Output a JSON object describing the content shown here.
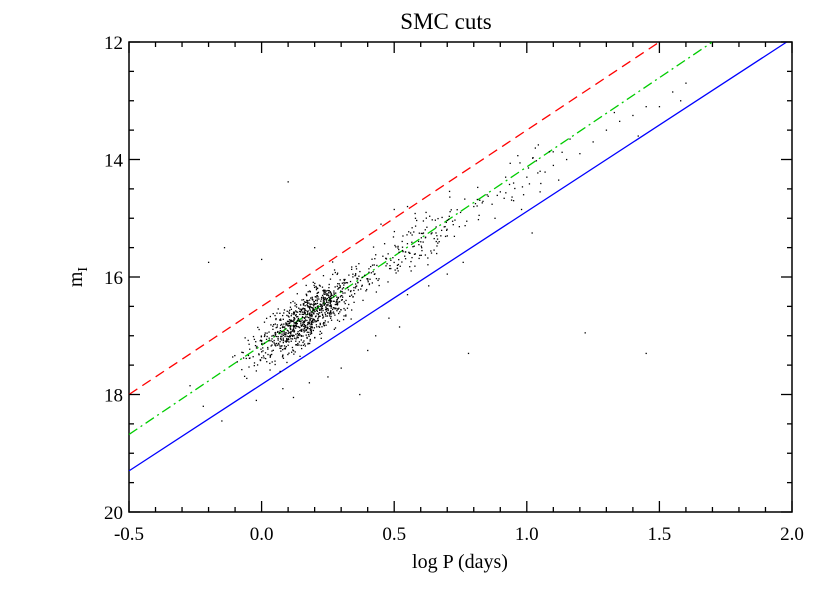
{
  "chart_data": {
    "type": "scatter",
    "title": "SMC cuts",
    "xlabel": "log P (days)",
    "ylabel_main": "m",
    "ylabel_sub": "I",
    "xlim": [
      -0.5,
      2.0
    ],
    "ylim": [
      20,
      12
    ],
    "y_inverted": true,
    "xticks": [
      -0.5,
      0.0,
      0.5,
      1.0,
      1.5,
      2.0
    ],
    "xtick_labels": [
      "-0.5",
      "0.0",
      "0.5",
      "1.0",
      "1.5",
      "2.0"
    ],
    "yticks": [
      12,
      14,
      16,
      18,
      20
    ],
    "ytick_labels": [
      "12",
      "14",
      "16",
      "18",
      "20"
    ],
    "grid": false,
    "lines": [
      {
        "style": "dashed",
        "color": "#ff0000",
        "x": [
          -0.5,
          1.5
        ],
        "y": [
          18.0,
          12.0
        ]
      },
      {
        "style": "dash-dot",
        "color": "#00cc00",
        "x": [
          -0.5,
          1.7
        ],
        "y": [
          18.68,
          12.0
        ]
      },
      {
        "style": "solid",
        "color": "#0000ff",
        "x": [
          -0.5,
          1.98
        ],
        "y": [
          19.3,
          12.0
        ]
      }
    ],
    "scatter_color": "#000000",
    "points": [
      [
        0.1,
        14.38
      ],
      [
        0.0,
        15.7
      ],
      [
        -0.2,
        15.75
      ],
      [
        -0.14,
        15.5
      ],
      [
        0.2,
        15.5
      ],
      [
        0.5,
        14.85
      ],
      [
        0.55,
        14.8
      ],
      [
        0.62,
        14.9
      ],
      [
        0.58,
        15.0
      ],
      [
        0.45,
        15.1
      ],
      [
        0.7,
        15.3
      ],
      [
        0.75,
        14.9
      ],
      [
        0.8,
        14.8
      ],
      [
        0.85,
        14.6
      ],
      [
        0.9,
        14.55
      ],
      [
        0.95,
        14.4
      ],
      [
        1.0,
        14.3
      ],
      [
        1.05,
        14.2
      ],
      [
        1.1,
        14.1
      ],
      [
        1.15,
        14.0
      ],
      [
        1.2,
        13.9
      ],
      [
        1.25,
        13.7
      ],
      [
        1.3,
        13.5
      ],
      [
        1.35,
        13.35
      ],
      [
        1.4,
        13.25
      ],
      [
        1.45,
        13.1
      ],
      [
        1.5,
        13.1
      ],
      [
        1.55,
        12.85
      ],
      [
        1.58,
        13.0
      ],
      [
        1.6,
        12.7
      ],
      [
        1.42,
        13.6
      ],
      [
        1.33,
        13.2
      ],
      [
        1.02,
        15.25
      ],
      [
        1.22,
        16.95
      ],
      [
        0.78,
        17.3
      ],
      [
        1.45,
        17.3
      ],
      [
        0.52,
        16.85
      ],
      [
        0.37,
        18.0
      ],
      [
        0.12,
        18.05
      ],
      [
        -0.02,
        18.1
      ],
      [
        -0.22,
        18.2
      ],
      [
        -0.15,
        18.45
      ],
      [
        -0.27,
        17.85
      ],
      [
        0.95,
        14.7
      ],
      [
        1.12,
        14.35
      ],
      [
        0.88,
        15.0
      ],
      [
        0.66,
        15.6
      ],
      [
        0.72,
        15.05
      ],
      [
        0.6,
        15.4
      ],
      [
        0.76,
        15.75
      ],
      [
        0.82,
        14.95
      ],
      [
        0.98,
        14.85
      ],
      [
        1.05,
        14.55
      ],
      [
        0.92,
        14.3
      ],
      [
        0.7,
        15.95
      ],
      [
        0.63,
        16.15
      ],
      [
        0.55,
        16.3
      ],
      [
        0.48,
        16.7
      ],
      [
        0.43,
        17.0
      ],
      [
        0.4,
        17.25
      ],
      [
        0.3,
        17.55
      ],
      [
        0.25,
        17.7
      ],
      [
        0.18,
        17.8
      ],
      [
        0.08,
        17.9
      ]
    ]
  }
}
